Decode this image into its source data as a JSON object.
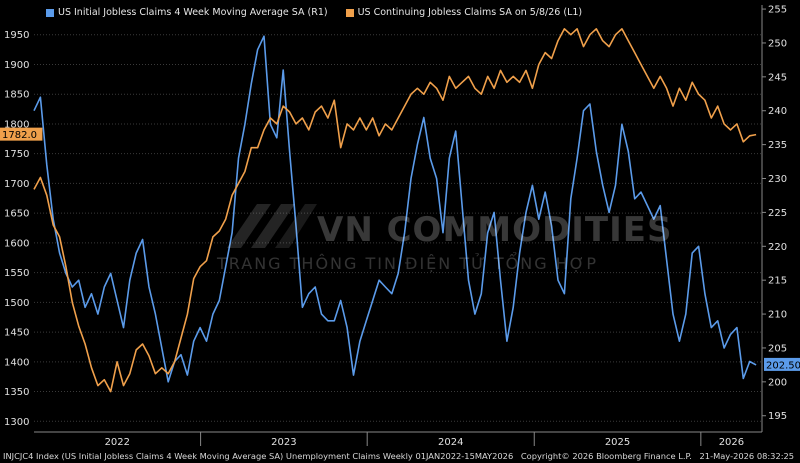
{
  "colors": {
    "right_series": "#5b9bea",
    "left_series": "#f0a04b",
    "grid": "#3a3a3a",
    "text": "#e0e0e0"
  },
  "chart_data": {
    "type": "line",
    "legend": [
      {
        "name": "US Initial Jobless Claims 4 Week Moving Average SA  (R1)",
        "color": "#5b9bea"
      },
      {
        "name": "US Continuing Jobless Claims SA  on 5/8/26 (L1)",
        "color": "#f0a04b"
      }
    ],
    "x_ticks": [
      "2022",
      "2023",
      "2024",
      "2025",
      "2026"
    ],
    "x_range": [
      "2022-01-01",
      "2026-05-15"
    ],
    "left_axis": {
      "ticks": [
        "1300",
        "1350",
        "1400",
        "1450",
        "1500",
        "1550",
        "1600",
        "1650",
        "1700",
        "1750",
        "1800",
        "1850",
        "1900",
        "1950"
      ],
      "ylim": [
        1282,
        2000
      ],
      "last_value_label": "1782.0"
    },
    "right_axis": {
      "ticks": [
        "195",
        "200",
        "205",
        "210",
        "215",
        "220",
        "225",
        "230",
        "235",
        "240",
        "245",
        "250",
        "255"
      ],
      "ylim": [
        192.6,
        255.6
      ],
      "last_value_label": "202.500"
    },
    "series": [
      {
        "name": "US Initial Jobless Claims 4 Week Moving Average SA  (R1)",
        "axis": "right",
        "points": [
          [
            "2022-01-01",
            240.0
          ],
          [
            "2022-01-15",
            242.0
          ],
          [
            "2022-01-29",
            232.0
          ],
          [
            "2022-02-12",
            224.0
          ],
          [
            "2022-02-26",
            219.0
          ],
          [
            "2022-03-12",
            216.0
          ],
          [
            "2022-03-26",
            214.0
          ],
          [
            "2022-04-09",
            215.0
          ],
          [
            "2022-04-23",
            211.0
          ],
          [
            "2022-05-07",
            213.0
          ],
          [
            "2022-05-21",
            210.0
          ],
          [
            "2022-06-04",
            214.0
          ],
          [
            "2022-06-18",
            216.0
          ],
          [
            "2022-07-02",
            212.0
          ],
          [
            "2022-07-16",
            208.0
          ],
          [
            "2022-07-30",
            215.0
          ],
          [
            "2022-08-13",
            219.0
          ],
          [
            "2022-08-27",
            221.0
          ],
          [
            "2022-09-10",
            214.0
          ],
          [
            "2022-09-24",
            210.0
          ],
          [
            "2022-10-08",
            205.0
          ],
          [
            "2022-10-22",
            200.0
          ],
          [
            "2022-11-05",
            203.0
          ],
          [
            "2022-11-19",
            204.0
          ],
          [
            "2022-12-03",
            201.0
          ],
          [
            "2022-12-17",
            206.0
          ],
          [
            "2022-12-31",
            208.0
          ],
          [
            "2023-01-14",
            206.0
          ],
          [
            "2023-01-28",
            210.0
          ],
          [
            "2023-02-11",
            212.0
          ],
          [
            "2023-02-25",
            217.0
          ],
          [
            "2023-03-11",
            222.0
          ],
          [
            "2023-03-25",
            233.0
          ],
          [
            "2023-04-08",
            238.0
          ],
          [
            "2023-04-22",
            244.0
          ],
          [
            "2023-05-06",
            249.0
          ],
          [
            "2023-05-20",
            251.0
          ],
          [
            "2023-06-03",
            238.0
          ],
          [
            "2023-06-17",
            236.0
          ],
          [
            "2023-07-01",
            246.0
          ],
          [
            "2023-07-15",
            234.0
          ],
          [
            "2023-07-29",
            223.0
          ],
          [
            "2023-08-12",
            211.0
          ],
          [
            "2023-08-26",
            213.0
          ],
          [
            "2023-09-09",
            214.0
          ],
          [
            "2023-09-23",
            210.0
          ],
          [
            "2023-10-07",
            209.0
          ],
          [
            "2023-10-21",
            209.0
          ],
          [
            "2023-11-04",
            212.0
          ],
          [
            "2023-11-18",
            208.0
          ],
          [
            "2023-12-02",
            201.0
          ],
          [
            "2023-12-16",
            206.0
          ],
          [
            "2023-12-30",
            209.0
          ],
          [
            "2024-01-13",
            212.0
          ],
          [
            "2024-01-27",
            215.0
          ],
          [
            "2024-02-10",
            214.0
          ],
          [
            "2024-02-24",
            213.0
          ],
          [
            "2024-03-09",
            216.0
          ],
          [
            "2024-03-23",
            222.0
          ],
          [
            "2024-04-06",
            230.0
          ],
          [
            "2024-04-20",
            235.0
          ],
          [
            "2024-05-04",
            239.0
          ],
          [
            "2024-05-18",
            233.0
          ],
          [
            "2024-06-01",
            230.0
          ],
          [
            "2024-06-15",
            222.0
          ],
          [
            "2024-06-29",
            233.0
          ],
          [
            "2024-07-13",
            237.0
          ],
          [
            "2024-07-27",
            226.0
          ],
          [
            "2024-08-10",
            215.0
          ],
          [
            "2024-08-24",
            210.0
          ],
          [
            "2024-09-07",
            213.0
          ],
          [
            "2024-09-21",
            222.0
          ],
          [
            "2024-10-05",
            225.0
          ],
          [
            "2024-10-19",
            215.0
          ],
          [
            "2024-11-02",
            206.0
          ],
          [
            "2024-11-16",
            211.0
          ],
          [
            "2024-11-30",
            219.0
          ],
          [
            "2024-12-14",
            225.0
          ],
          [
            "2024-12-28",
            229.0
          ],
          [
            "2025-01-11",
            224.0
          ],
          [
            "2025-01-25",
            228.0
          ],
          [
            "2025-02-08",
            223.0
          ],
          [
            "2025-02-22",
            215.0
          ],
          [
            "2025-03-08",
            213.0
          ],
          [
            "2025-03-22",
            227.0
          ],
          [
            "2025-04-05",
            233.0
          ],
          [
            "2025-04-19",
            240.0
          ],
          [
            "2025-05-03",
            241.0
          ],
          [
            "2025-05-17",
            234.0
          ],
          [
            "2025-05-31",
            229.0
          ],
          [
            "2025-06-14",
            225.0
          ],
          [
            "2025-06-28",
            229.0
          ],
          [
            "2025-07-12",
            238.0
          ],
          [
            "2025-07-26",
            234.0
          ],
          [
            "2025-08-09",
            227.0
          ],
          [
            "2025-08-23",
            228.0
          ],
          [
            "2025-09-06",
            226.0
          ],
          [
            "2025-09-20",
            224.0
          ],
          [
            "2025-10-04",
            226.0
          ],
          [
            "2025-10-18",
            218.0
          ],
          [
            "2025-11-01",
            210.0
          ],
          [
            "2025-11-15",
            206.0
          ],
          [
            "2025-11-29",
            210.0
          ],
          [
            "2025-12-13",
            219.0
          ],
          [
            "2025-12-27",
            220.0
          ],
          [
            "2026-01-10",
            213.0
          ],
          [
            "2026-01-24",
            208.0
          ],
          [
            "2026-02-07",
            209.0
          ],
          [
            "2026-02-21",
            205.0
          ],
          [
            "2026-03-07",
            207.0
          ],
          [
            "2026-03-21",
            208.0
          ],
          [
            "2026-04-04",
            200.5
          ],
          [
            "2026-04-18",
            203.0
          ],
          [
            "2026-05-02",
            202.5
          ]
        ]
      },
      {
        "name": "US Continuing Jobless Claims SA  on 5/8/26 (L1)",
        "axis": "left",
        "points": [
          [
            "2022-01-01",
            1690
          ],
          [
            "2022-01-15",
            1710
          ],
          [
            "2022-01-29",
            1680
          ],
          [
            "2022-02-12",
            1630
          ],
          [
            "2022-02-26",
            1610
          ],
          [
            "2022-03-12",
            1560
          ],
          [
            "2022-03-26",
            1500
          ],
          [
            "2022-04-09",
            1460
          ],
          [
            "2022-04-23",
            1430
          ],
          [
            "2022-05-07",
            1390
          ],
          [
            "2022-05-21",
            1360
          ],
          [
            "2022-06-04",
            1370
          ],
          [
            "2022-06-18",
            1350
          ],
          [
            "2022-07-02",
            1400
          ],
          [
            "2022-07-16",
            1360
          ],
          [
            "2022-07-30",
            1380
          ],
          [
            "2022-08-13",
            1420
          ],
          [
            "2022-08-27",
            1430
          ],
          [
            "2022-09-10",
            1410
          ],
          [
            "2022-09-24",
            1380
          ],
          [
            "2022-10-08",
            1390
          ],
          [
            "2022-10-22",
            1380
          ],
          [
            "2022-11-05",
            1400
          ],
          [
            "2022-11-19",
            1440
          ],
          [
            "2022-12-03",
            1480
          ],
          [
            "2022-12-17",
            1540
          ],
          [
            "2022-12-31",
            1560
          ],
          [
            "2023-01-14",
            1570
          ],
          [
            "2023-01-28",
            1610
          ],
          [
            "2023-02-11",
            1620
          ],
          [
            "2023-02-25",
            1640
          ],
          [
            "2023-03-11",
            1680
          ],
          [
            "2023-03-25",
            1700
          ],
          [
            "2023-04-08",
            1720
          ],
          [
            "2023-04-22",
            1760
          ],
          [
            "2023-05-06",
            1760
          ],
          [
            "2023-05-20",
            1790
          ],
          [
            "2023-06-03",
            1810
          ],
          [
            "2023-06-17",
            1800
          ],
          [
            "2023-07-01",
            1830
          ],
          [
            "2023-07-15",
            1820
          ],
          [
            "2023-07-29",
            1800
          ],
          [
            "2023-08-12",
            1810
          ],
          [
            "2023-08-26",
            1790
          ],
          [
            "2023-09-09",
            1820
          ],
          [
            "2023-09-23",
            1830
          ],
          [
            "2023-10-07",
            1810
          ],
          [
            "2023-10-21",
            1840
          ],
          [
            "2023-11-04",
            1760
          ],
          [
            "2023-11-18",
            1800
          ],
          [
            "2023-12-02",
            1790
          ],
          [
            "2023-12-16",
            1810
          ],
          [
            "2023-12-30",
            1790
          ],
          [
            "2024-01-13",
            1810
          ],
          [
            "2024-01-27",
            1780
          ],
          [
            "2024-02-10",
            1800
          ],
          [
            "2024-02-24",
            1790
          ],
          [
            "2024-03-09",
            1810
          ],
          [
            "2024-03-23",
            1830
          ],
          [
            "2024-04-06",
            1850
          ],
          [
            "2024-04-20",
            1860
          ],
          [
            "2024-05-04",
            1850
          ],
          [
            "2024-05-18",
            1870
          ],
          [
            "2024-06-01",
            1860
          ],
          [
            "2024-06-15",
            1840
          ],
          [
            "2024-06-29",
            1880
          ],
          [
            "2024-07-13",
            1860
          ],
          [
            "2024-07-27",
            1870
          ],
          [
            "2024-08-10",
            1880
          ],
          [
            "2024-08-24",
            1860
          ],
          [
            "2024-09-07",
            1850
          ],
          [
            "2024-09-21",
            1880
          ],
          [
            "2024-10-05",
            1860
          ],
          [
            "2024-10-19",
            1890
          ],
          [
            "2024-11-02",
            1870
          ],
          [
            "2024-11-16",
            1880
          ],
          [
            "2024-11-30",
            1870
          ],
          [
            "2024-12-14",
            1890
          ],
          [
            "2024-12-28",
            1860
          ],
          [
            "2025-01-11",
            1900
          ],
          [
            "2025-01-25",
            1920
          ],
          [
            "2025-02-08",
            1910
          ],
          [
            "2025-02-22",
            1940
          ],
          [
            "2025-03-08",
            1960
          ],
          [
            "2025-03-22",
            1950
          ],
          [
            "2025-04-05",
            1960
          ],
          [
            "2025-04-19",
            1930
          ],
          [
            "2025-05-03",
            1950
          ],
          [
            "2025-05-17",
            1960
          ],
          [
            "2025-05-31",
            1940
          ],
          [
            "2025-06-14",
            1930
          ],
          [
            "2025-06-28",
            1950
          ],
          [
            "2025-07-12",
            1960
          ],
          [
            "2025-07-26",
            1940
          ],
          [
            "2025-08-09",
            1920
          ],
          [
            "2025-08-23",
            1900
          ],
          [
            "2025-09-06",
            1880
          ],
          [
            "2025-09-20",
            1860
          ],
          [
            "2025-10-04",
            1880
          ],
          [
            "2025-10-18",
            1860
          ],
          [
            "2025-11-01",
            1830
          ],
          [
            "2025-11-15",
            1860
          ],
          [
            "2025-11-29",
            1840
          ],
          [
            "2025-12-13",
            1870
          ],
          [
            "2025-12-27",
            1850
          ],
          [
            "2026-01-10",
            1840
          ],
          [
            "2026-01-24",
            1810
          ],
          [
            "2026-02-07",
            1830
          ],
          [
            "2026-02-21",
            1800
          ],
          [
            "2026-03-07",
            1790
          ],
          [
            "2026-03-21",
            1800
          ],
          [
            "2026-04-04",
            1770
          ],
          [
            "2026-04-18",
            1780
          ],
          [
            "2026-05-02",
            1782
          ]
        ]
      }
    ]
  },
  "watermark": {
    "title": "VN COMMODITIES",
    "subtitle": "TRANG THÔNG TIN ĐIỆN TỬ TỔNG HỢP"
  },
  "footer": {
    "ticker": "INJCJC4 Index (US Initial Jobless Claims 4 Week Moving Average SA) Unemployment Claims Weekly 01JAN2022-15MAY2026",
    "copyright": "Copyright© 2026 Bloomberg Finance L.P.",
    "timestamp": "21-May-2026 08:32:25"
  }
}
